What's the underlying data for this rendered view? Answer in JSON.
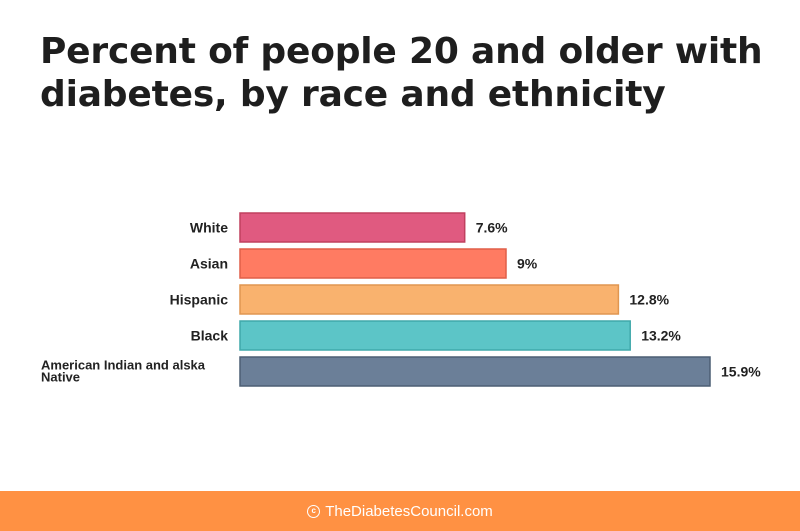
{
  "chart_data": {
    "type": "bar",
    "orientation": "horizontal",
    "title": "Percent of people 20 and older with diabetes, by race and ethnicity",
    "categories": [
      "White",
      "Asian",
      "Hispanic",
      "Black",
      "American Indian and alska Native"
    ],
    "values": [
      7.6,
      9,
      12.8,
      13.2,
      15.9
    ],
    "value_labels": [
      "7.6%",
      "9%",
      "12.8%",
      "13.2%",
      "15.9%"
    ],
    "colors": [
      "#e05a80",
      "#ff7b62",
      "#f9b26e",
      "#5cc5c7",
      "#6b7f98"
    ],
    "border_colors": [
      "#c0405f",
      "#e05f48",
      "#e09650",
      "#3fa8aa",
      "#4c5e74"
    ],
    "xlim": [
      0,
      15.9
    ],
    "grid": false,
    "legend": "none"
  },
  "footer": {
    "text": "TheDiabetesCouncil.com",
    "background": "#ff9143"
  }
}
